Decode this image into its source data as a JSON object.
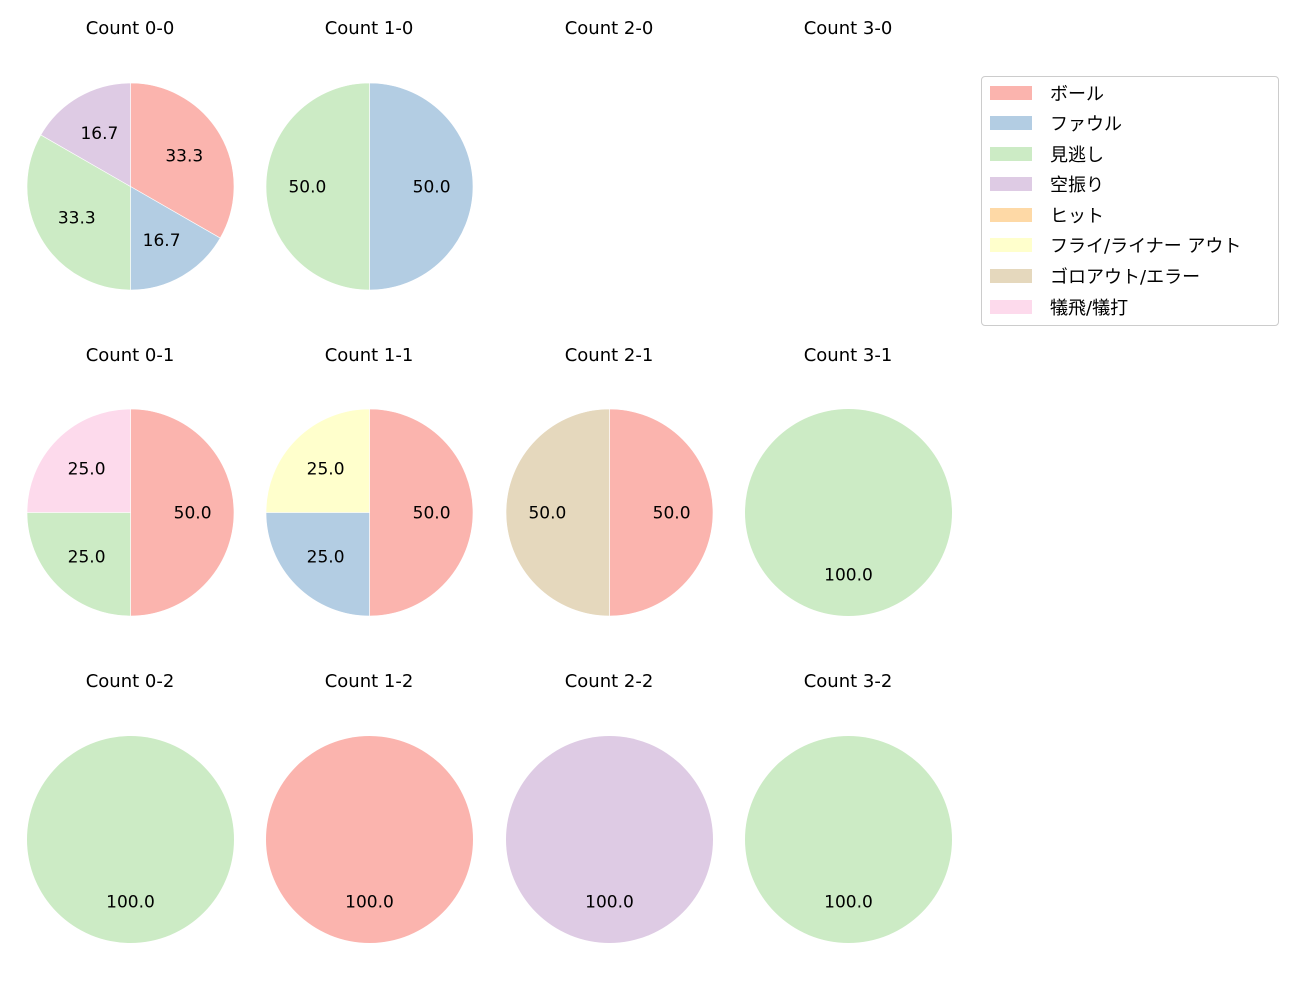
{
  "chart_data": {
    "type": "pie",
    "title": "",
    "start_angle": "12 o'clock, clockwise",
    "categories": [
      "ボール",
      "ファウル",
      "見逃し",
      "空振り",
      "ヒット",
      "フライ/ライナー アウト",
      "ゴロアウト/エラー",
      "犠飛/犠打"
    ],
    "colors": [
      "#fbb4ae",
      "#b3cde3",
      "#ccebc5",
      "#decbe4",
      "#fed9a6",
      "#ffffcc",
      "#e5d8bd",
      "#fddaec"
    ],
    "legend": {
      "position": "right",
      "entries": [
        "ボール",
        "ファウル",
        "見逃し",
        "空振り",
        "ヒット",
        "フライ/ライナー アウト",
        "ゴロアウト/エラー",
        "犠飛/犠打"
      ]
    },
    "subplots": [
      {
        "title": "Count 0-0",
        "slices": [
          {
            "category": "ボール",
            "value": 33.3
          },
          {
            "category": "ファウル",
            "value": 16.7
          },
          {
            "category": "見逃し",
            "value": 33.3
          },
          {
            "category": "空振り",
            "value": 16.7
          }
        ]
      },
      {
        "title": "Count 1-0",
        "slices": [
          {
            "category": "ファウル",
            "value": 50.0
          },
          {
            "category": "見逃し",
            "value": 50.0
          }
        ]
      },
      {
        "title": "Count 2-0",
        "slices": []
      },
      {
        "title": "Count 3-0",
        "slices": []
      },
      {
        "title": "Count 0-1",
        "slices": [
          {
            "category": "ボール",
            "value": 50.0
          },
          {
            "category": "見逃し",
            "value": 25.0
          },
          {
            "category": "犠飛/犠打",
            "value": 25.0
          }
        ]
      },
      {
        "title": "Count 1-1",
        "slices": [
          {
            "category": "ボール",
            "value": 50.0
          },
          {
            "category": "ファウル",
            "value": 25.0
          },
          {
            "category": "フライ/ライナー アウト",
            "value": 25.0
          }
        ]
      },
      {
        "title": "Count 2-1",
        "slices": [
          {
            "category": "ボール",
            "value": 50.0
          },
          {
            "category": "ゴロアウト/エラー",
            "value": 50.0
          }
        ]
      },
      {
        "title": "Count 3-1",
        "slices": [
          {
            "category": "見逃し",
            "value": 100.0
          }
        ]
      },
      {
        "title": "Count 0-2",
        "slices": [
          {
            "category": "見逃し",
            "value": 100.0
          }
        ]
      },
      {
        "title": "Count 1-2",
        "slices": [
          {
            "category": "ボール",
            "value": 100.0
          }
        ]
      },
      {
        "title": "Count 2-2",
        "slices": [
          {
            "category": "空振り",
            "value": 100.0
          }
        ]
      },
      {
        "title": "Count 3-2",
        "slices": [
          {
            "category": "見逃し",
            "value": 100.0
          }
        ]
      }
    ]
  }
}
